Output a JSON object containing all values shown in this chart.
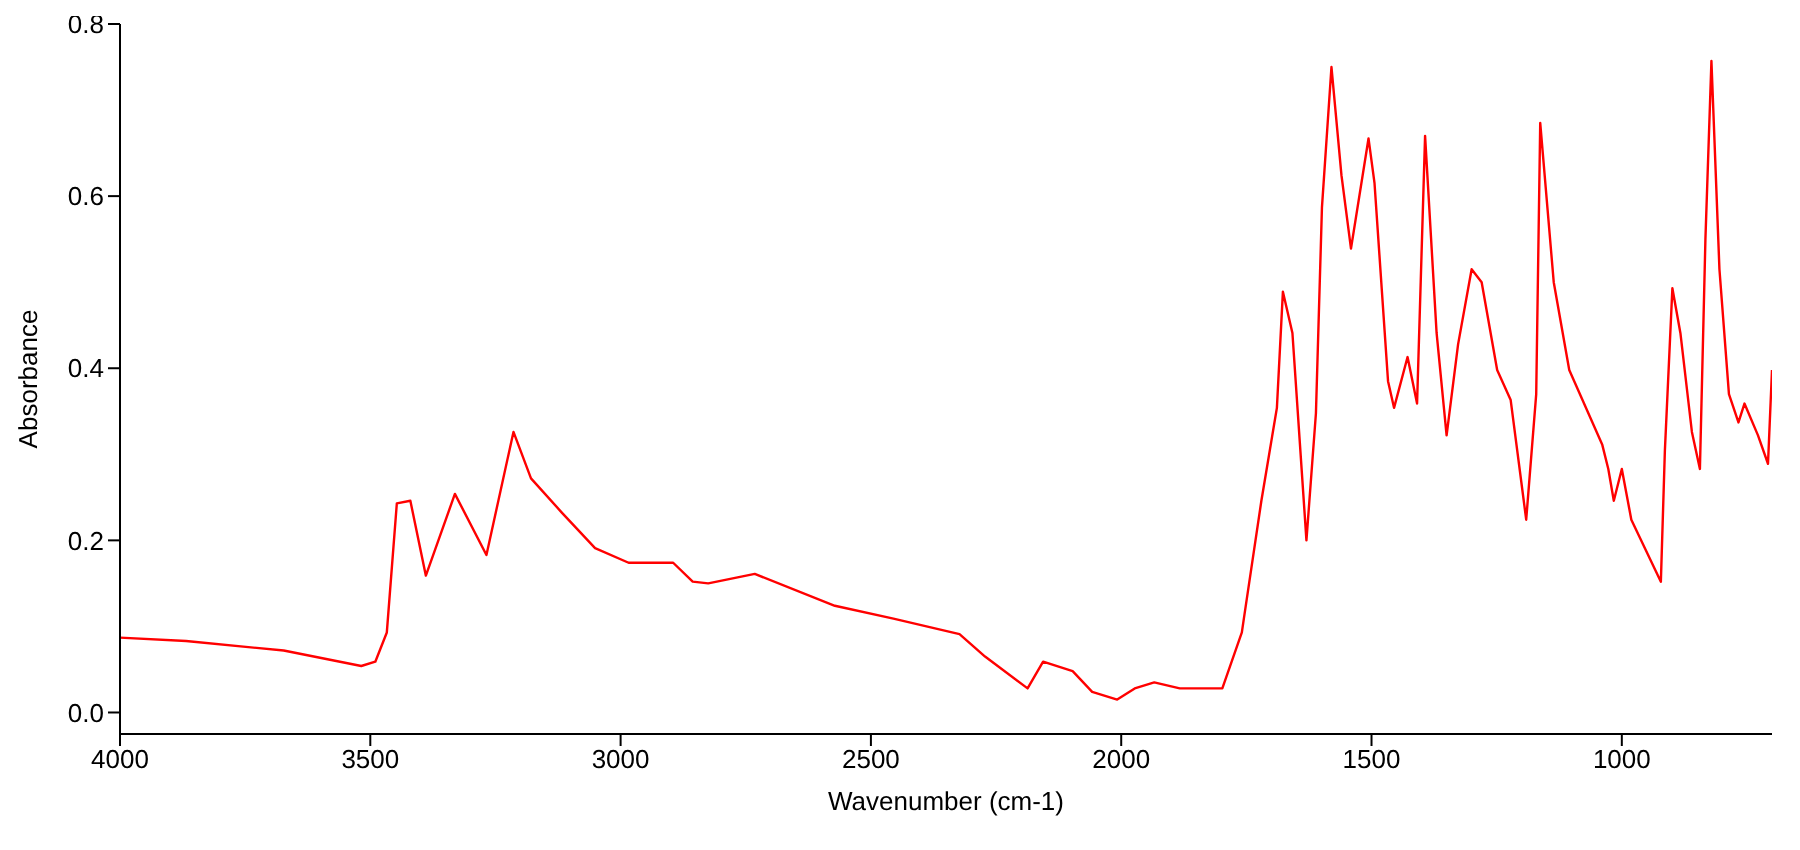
{
  "chart_data": {
    "type": "line",
    "xlabel": "Wavenumber (cm-1)",
    "ylabel": "Absorbance",
    "xlim": [
      4000,
      700
    ],
    "xticks": [
      4000,
      3500,
      3000,
      2500,
      2000,
      1500,
      1000
    ],
    "ylim": [
      -0.025,
      0.8
    ],
    "yticks": [
      {
        "value": 0,
        "label": "0.0"
      },
      {
        "value": 0.2,
        "label": "0.2"
      },
      {
        "value": 0.4,
        "label": "0.4"
      },
      {
        "value": 0.6,
        "label": "0.6"
      },
      {
        "value": 0.8,
        "label": "0.8"
      }
    ],
    "grid": false,
    "legend": false,
    "marker": "none",
    "line_style": "solid",
    "series": [
      {
        "color": "#ff0000",
        "x": [
          4000,
          3868,
          3673,
          3518,
          3490,
          3467,
          3447,
          3420,
          3389,
          3331,
          3268,
          3214,
          3179,
          3117,
          3051,
          2984,
          2895,
          2856,
          2825,
          2732,
          2572,
          2455,
          2323,
          2272,
          2187,
          2156,
          2097,
          2058,
          2008,
          1973,
          1934,
          1883,
          1798,
          1759,
          1755,
          1720,
          1689,
          1677,
          1658,
          1630,
          1611,
          1599,
          1580,
          1560,
          1541,
          1506,
          1494,
          1467,
          1455,
          1428,
          1409,
          1393,
          1370,
          1350,
          1327,
          1300,
          1280,
          1249,
          1222,
          1191,
          1171,
          1163,
          1136,
          1105,
          1039,
          1027,
          1016,
          1000,
          981,
          922,
          914,
          899,
          883,
          860,
          844,
          833,
          821,
          805,
          786,
          767,
          755,
          728,
          708,
          700
        ],
        "values": [
          0.087,
          0.083,
          0.072,
          0.054,
          0.059,
          0.093,
          0.243,
          0.246,
          0.159,
          0.254,
          0.183,
          0.326,
          0.272,
          0.232,
          0.191,
          0.174,
          0.174,
          0.152,
          0.15,
          0.161,
          0.124,
          0.109,
          0.091,
          0.065,
          0.028,
          0.059,
          0.048,
          0.024,
          0.015,
          0.028,
          0.035,
          0.028,
          0.028,
          0.093,
          0.109,
          0.246,
          0.354,
          0.489,
          0.441,
          0.2,
          0.348,
          0.587,
          0.75,
          0.624,
          0.539,
          0.667,
          0.615,
          0.385,
          0.354,
          0.413,
          0.359,
          0.67,
          0.441,
          0.322,
          0.428,
          0.515,
          0.5,
          0.398,
          0.363,
          0.224,
          0.37,
          0.685,
          0.5,
          0.398,
          0.311,
          0.283,
          0.246,
          0.283,
          0.224,
          0.152,
          0.304,
          0.493,
          0.441,
          0.326,
          0.283,
          0.55,
          0.757,
          0.515,
          0.37,
          0.337,
          0.359,
          0.322,
          0.289,
          0.398
        ]
      }
    ]
  }
}
